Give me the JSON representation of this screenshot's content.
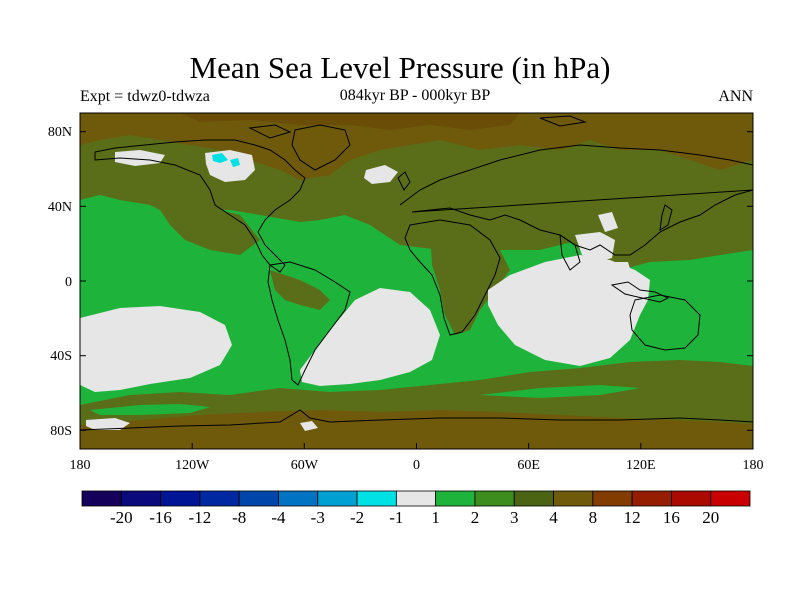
{
  "title": "Mean Sea Level Pressure (in hPa)",
  "subtitle_left": "Expt = tdwz0-tdwza",
  "subtitle_center": "084kyr BP - 000kyr BP",
  "subtitle_right": "ANN",
  "lat_ticks": [
    "80N",
    "40N",
    "0",
    "40S",
    "80S"
  ],
  "lon_ticks": [
    "180",
    "120W",
    "60W",
    "0",
    "60E",
    "120E",
    "180"
  ],
  "colorbar": {
    "labels": [
      "-20",
      "-16",
      "-12",
      "-8",
      "-4",
      "-3",
      "-2",
      "-1",
      "1",
      "2",
      "3",
      "4",
      "8",
      "12",
      "16",
      "20"
    ],
    "colors": [
      "#14005a",
      "#0a0a7d",
      "#001496",
      "#0028a0",
      "#0046aa",
      "#0073c3",
      "#00a0d2",
      "#00e1e6",
      "#e6e6e6",
      "#1eb43c",
      "#3c8c1e",
      "#4b6414",
      "#6e5a0a",
      "#823c00",
      "#961e00",
      "#aa0a00",
      "#c80000"
    ]
  },
  "palette": {
    "white": "#e6e6e6",
    "green": "#1eb43c",
    "green2": "#3c8c1e",
    "olive": "#5a6e19",
    "brown": "#6e5a0a",
    "cyan": "#00e1e6",
    "lightblue": "#00a0d2"
  }
}
